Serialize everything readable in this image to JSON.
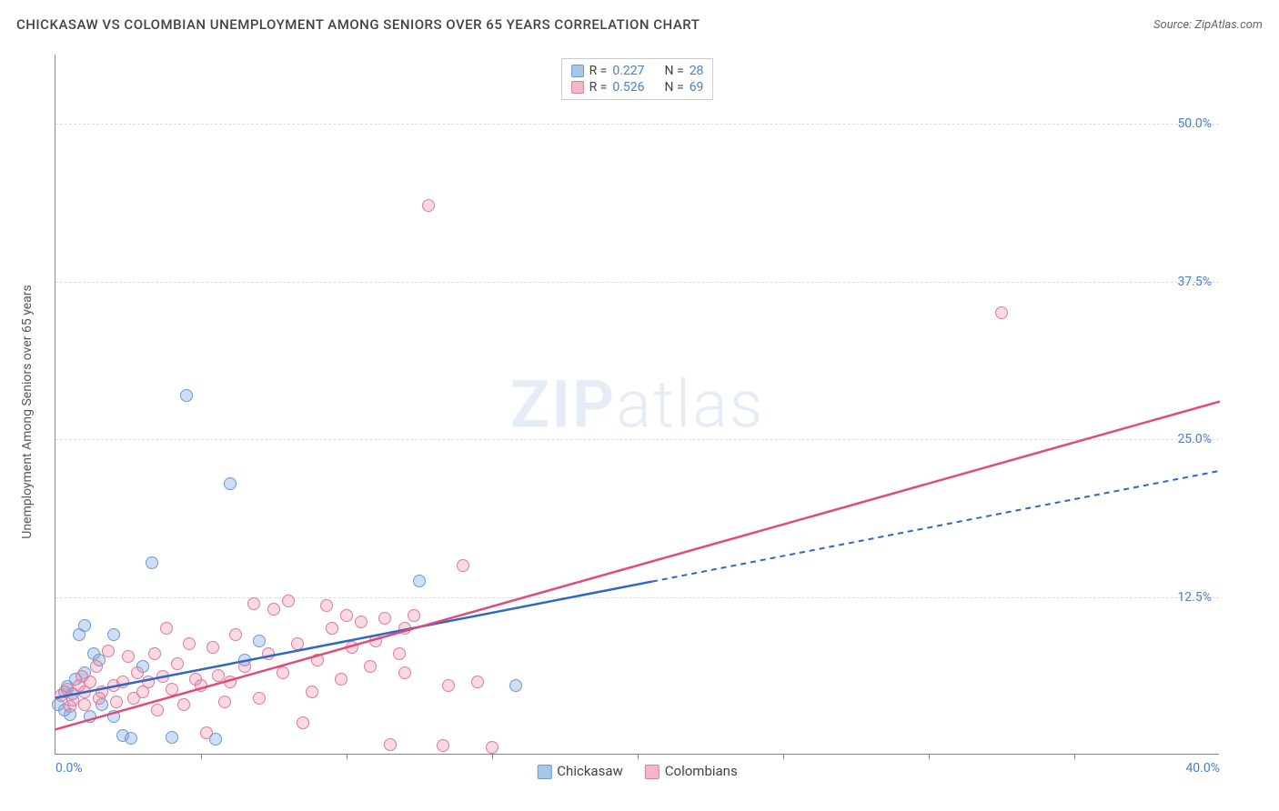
{
  "title": "CHICKASAW VS COLOMBIAN UNEMPLOYMENT AMONG SENIORS OVER 65 YEARS CORRELATION CHART",
  "source": "Source: ZipAtlas.com",
  "ylabel": "Unemployment Among Seniors over 65 years",
  "watermark_a": "ZIP",
  "watermark_b": "atlas",
  "chart": {
    "type": "scatter",
    "xlim": [
      0,
      40
    ],
    "ylim": [
      0,
      55.5
    ],
    "xticks": [
      0,
      40
    ],
    "xtick_labels": [
      "0.0%",
      "40.0%"
    ],
    "yticks": [
      12.5,
      25,
      37.5,
      50
    ],
    "ytick_labels": [
      "12.5%",
      "25.0%",
      "37.5%",
      "50.0%"
    ],
    "x_minor_tick_step": 5,
    "background_color": "#ffffff",
    "grid_color": "#dddddd",
    "axis_color": "#888888",
    "tick_label_color": "#4a7ec9",
    "label_fontsize": 14,
    "marker_radius": 7,
    "marker_stroke_width": 1,
    "series": [
      {
        "name": "Chickasaw",
        "fill": "rgba(120,160,220,0.35)",
        "stroke": "#6a9bd8",
        "swatch_fill": "#a9c5e8",
        "swatch_stroke": "#6a9bd8",
        "line_color": "#2d68c4",
        "line_style_solid_end_x": 20.5,
        "line_dash": "6,5",
        "R": "0.227",
        "N": "28",
        "regression": {
          "x1": 0,
          "y1": 4.5,
          "x2": 40,
          "y2": 22.5
        },
        "points": [
          [
            0.1,
            4.0
          ],
          [
            0.3,
            5.0
          ],
          [
            0.4,
            5.4
          ],
          [
            0.5,
            3.2
          ],
          [
            0.6,
            4.8
          ],
          [
            0.7,
            6.0
          ],
          [
            0.8,
            9.5
          ],
          [
            1.0,
            10.2
          ],
          [
            1.0,
            6.5
          ],
          [
            1.2,
            3.0
          ],
          [
            1.3,
            8.0
          ],
          [
            1.5,
            7.5
          ],
          [
            1.6,
            4.0
          ],
          [
            2.0,
            3.0
          ],
          [
            2.0,
            9.5
          ],
          [
            2.3,
            1.5
          ],
          [
            2.6,
            1.3
          ],
          [
            3.0,
            7.0
          ],
          [
            3.3,
            15.2
          ],
          [
            4.0,
            1.4
          ],
          [
            4.5,
            28.5
          ],
          [
            5.5,
            1.2
          ],
          [
            6.0,
            21.5
          ],
          [
            6.5,
            7.5
          ],
          [
            7.0,
            9.0
          ],
          [
            12.5,
            13.8
          ],
          [
            15.8,
            5.5
          ],
          [
            0.3,
            3.5
          ]
        ]
      },
      {
        "name": "Colombians",
        "fill": "rgba(235,130,160,0.30)",
        "stroke": "#e27a9a",
        "swatch_fill": "#f2b7c8",
        "swatch_stroke": "#e27a9a",
        "line_color": "#e14a7b",
        "line_style_solid_end_x": 40,
        "R": "0.526",
        "N": "69",
        "regression": {
          "x1": 0,
          "y1": 2.0,
          "x2": 40,
          "y2": 28.0
        },
        "points": [
          [
            0.2,
            4.7
          ],
          [
            0.4,
            5.2
          ],
          [
            0.5,
            3.8
          ],
          [
            0.6,
            4.3
          ],
          [
            0.8,
            5.5
          ],
          [
            0.9,
            6.2
          ],
          [
            1.0,
            4.0
          ],
          [
            1.2,
            5.8
          ],
          [
            1.4,
            7.0
          ],
          [
            1.5,
            4.5
          ],
          [
            1.6,
            5.0
          ],
          [
            1.8,
            8.2
          ],
          [
            2.0,
            5.5
          ],
          [
            2.1,
            4.2
          ],
          [
            2.3,
            5.8
          ],
          [
            2.5,
            7.8
          ],
          [
            2.7,
            4.5
          ],
          [
            2.8,
            6.5
          ],
          [
            3.0,
            5.0
          ],
          [
            3.2,
            5.8
          ],
          [
            3.4,
            8.0
          ],
          [
            3.5,
            3.5
          ],
          [
            3.7,
            6.2
          ],
          [
            3.8,
            10.0
          ],
          [
            4.0,
            5.2
          ],
          [
            4.2,
            7.2
          ],
          [
            4.4,
            4.0
          ],
          [
            4.6,
            8.8
          ],
          [
            4.8,
            6.0
          ],
          [
            5.0,
            5.5
          ],
          [
            5.2,
            1.7
          ],
          [
            5.4,
            8.5
          ],
          [
            5.6,
            6.3
          ],
          [
            5.8,
            4.2
          ],
          [
            6.0,
            5.8
          ],
          [
            6.2,
            9.5
          ],
          [
            6.5,
            7.0
          ],
          [
            6.8,
            12.0
          ],
          [
            7.0,
            4.5
          ],
          [
            7.3,
            8.0
          ],
          [
            7.5,
            11.5
          ],
          [
            7.8,
            6.5
          ],
          [
            8.0,
            12.2
          ],
          [
            8.3,
            8.8
          ],
          [
            8.5,
            2.5
          ],
          [
            8.8,
            5.0
          ],
          [
            9.0,
            7.5
          ],
          [
            9.3,
            11.8
          ],
          [
            9.5,
            10.0
          ],
          [
            9.8,
            6.0
          ],
          [
            10.0,
            11.0
          ],
          [
            10.2,
            8.5
          ],
          [
            10.5,
            10.5
          ],
          [
            10.8,
            7.0
          ],
          [
            11.0,
            9.0
          ],
          [
            11.3,
            10.8
          ],
          [
            11.5,
            0.8
          ],
          [
            11.8,
            8.0
          ],
          [
            12.0,
            6.5
          ],
          [
            12.3,
            11.0
          ],
          [
            12.8,
            43.5
          ],
          [
            13.3,
            0.7
          ],
          [
            13.5,
            5.5
          ],
          [
            14.0,
            15.0
          ],
          [
            14.5,
            5.8
          ],
          [
            15.0,
            0.6
          ],
          [
            32.5,
            35.0
          ],
          [
            12.0,
            10.0
          ],
          [
            1.0,
            5.0
          ]
        ]
      }
    ]
  },
  "legend_top": {
    "rows": [
      {
        "swatch_fill": "#a9c5e8",
        "swatch_stroke": "#6a9bd8",
        "R_label": "R =",
        "R": "0.227",
        "N_label": "N =",
        "N": "28"
      },
      {
        "swatch_fill": "#f2b7c8",
        "swatch_stroke": "#e27a9a",
        "R_label": "R =",
        "R": "0.526",
        "N_label": "N =",
        "N": "69"
      }
    ]
  },
  "legend_bottom": {
    "items": [
      {
        "label": "Chickasaw",
        "swatch_fill": "#a9c5e8",
        "swatch_stroke": "#6a9bd8"
      },
      {
        "label": "Colombians",
        "swatch_fill": "#f2b7c8",
        "swatch_stroke": "#e27a9a"
      }
    ]
  }
}
